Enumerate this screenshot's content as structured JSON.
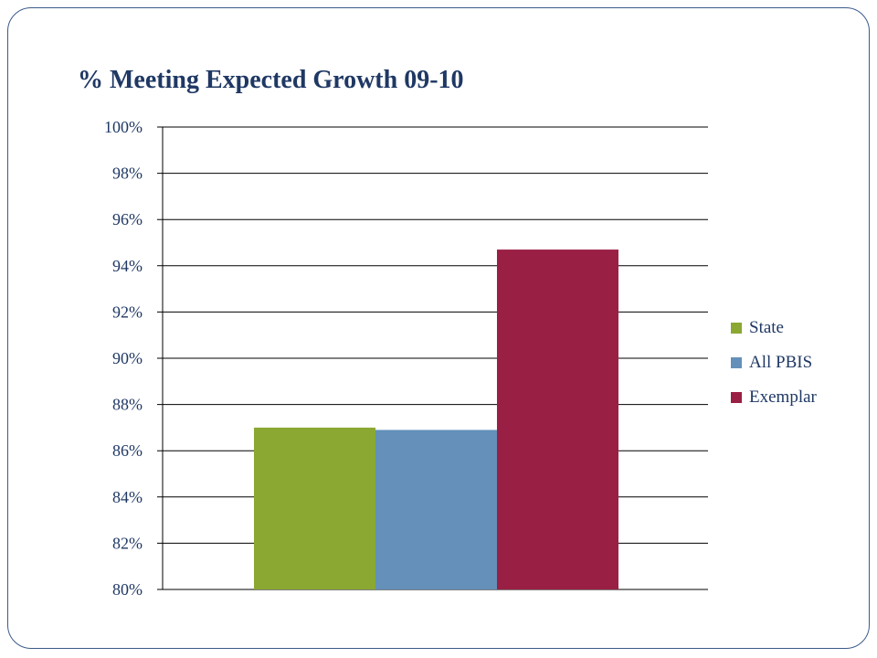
{
  "chart_data": {
    "type": "bar",
    "title": "% Meeting Expected Growth 09-10",
    "xlabel": "",
    "ylabel": "",
    "ylim": [
      80,
      100
    ],
    "yticks": [
      "80%",
      "82%",
      "84%",
      "86%",
      "88%",
      "90%",
      "92%",
      "94%",
      "96%",
      "98%",
      "100%"
    ],
    "categories": [
      ""
    ],
    "series": [
      {
        "name": "State",
        "values": [
          87.0
        ],
        "color": "#8aa832"
      },
      {
        "name": "All PBIS",
        "values": [
          86.9
        ],
        "color": "#6490ba"
      },
      {
        "name": "Exemplar",
        "values": [
          94.7
        ],
        "color": "#9a1f44"
      }
    ],
    "grid": true,
    "legend": "right"
  }
}
